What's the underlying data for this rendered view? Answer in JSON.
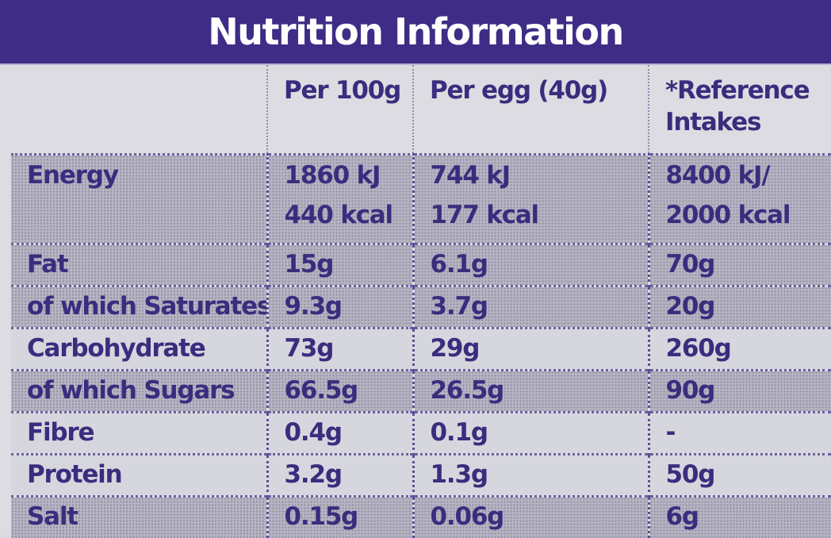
{
  "title": "Nutrition Information",
  "columns": [
    "",
    "Per 100g",
    "Per egg (40g)",
    "*Reference Intakes"
  ],
  "reference_header": [
    "*Reference",
    "Intakes"
  ],
  "energy": {
    "label": "Energy",
    "per100": [
      "1860 kJ",
      "440 kcal"
    ],
    "per_egg": [
      "744 kJ",
      "177 kcal"
    ],
    "reference": [
      "8400 kJ/",
      "2000 kcal"
    ]
  },
  "rows": [
    {
      "label": "Fat",
      "per100": "15g",
      "per_egg": "6.1g",
      "reference": "70g"
    },
    {
      "label": "of which Saturates",
      "per100": "9.3g",
      "per_egg": "3.7g",
      "reference": "20g"
    },
    {
      "label": "Carbohydrate",
      "per100": "73g",
      "per_egg": "29g",
      "reference": "260g"
    },
    {
      "label": "of which Sugars",
      "per100": "66.5g",
      "per_egg": "26.5g",
      "reference": "90g"
    },
    {
      "label": "Fibre",
      "per100": "0.4g",
      "per_egg": "0.1g",
      "reference": "-"
    },
    {
      "label": "Protein",
      "per100": "3.2g",
      "per_egg": "1.3g",
      "reference": "50g"
    },
    {
      "label": "Salt",
      "per100": "0.15g",
      "per_egg": "0.06g",
      "reference": "6g"
    }
  ],
  "colors": {
    "title_bar": "#3e2c86",
    "text": "#3b2c7e",
    "shaded_row": "#b7b5c3",
    "light_row": "#d6d6de"
  }
}
